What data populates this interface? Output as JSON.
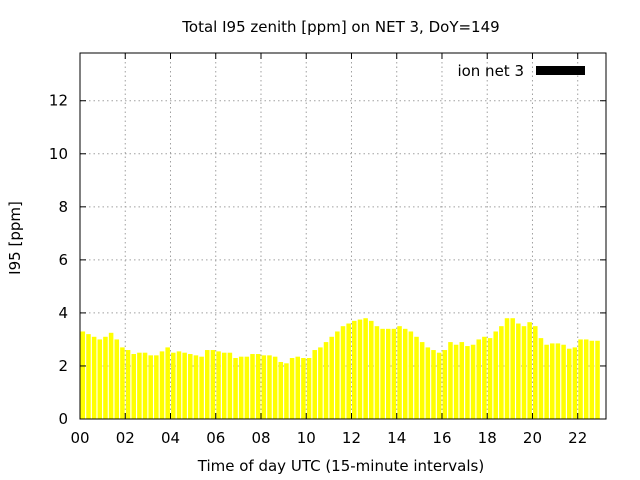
{
  "chart_data": {
    "type": "bar",
    "title": "Total I95 zenith [ppm] on NET 3, DoY=149",
    "xlabel": "Time of day UTC (15-minute intervals)",
    "ylabel": "I95 [ppm]",
    "xlim": [
      0,
      23.25
    ],
    "ylim": [
      0,
      13.8
    ],
    "x_ticks": [
      "00",
      "02",
      "04",
      "06",
      "08",
      "10",
      "12",
      "14",
      "16",
      "18",
      "20",
      "22"
    ],
    "y_ticks": [
      "0",
      "2",
      "4",
      "6",
      "8",
      "10",
      "12"
    ],
    "grid": true,
    "legend_position": "top-right",
    "bar_width_hours": 0.2,
    "series": [
      {
        "name": "ion net 3",
        "color": "#ffff00",
        "legend_swatch_color": "#000000",
        "x": [
          0.125,
          0.375,
          0.625,
          0.875,
          1.125,
          1.375,
          1.625,
          1.875,
          2.125,
          2.375,
          2.625,
          2.875,
          3.125,
          3.375,
          3.625,
          3.875,
          4.125,
          4.375,
          4.625,
          4.875,
          5.125,
          5.375,
          5.625,
          5.875,
          6.125,
          6.375,
          6.625,
          6.875,
          7.125,
          7.375,
          7.625,
          7.875,
          8.125,
          8.375,
          8.625,
          8.875,
          9.125,
          9.375,
          9.625,
          9.875,
          10.125,
          10.375,
          10.625,
          10.875,
          11.125,
          11.375,
          11.625,
          11.875,
          12.125,
          12.375,
          12.625,
          12.875,
          13.125,
          13.375,
          13.625,
          13.875,
          14.125,
          14.375,
          14.625,
          14.875,
          15.125,
          15.375,
          15.625,
          15.875,
          16.125,
          16.375,
          16.625,
          16.875,
          17.125,
          17.375,
          17.625,
          17.875,
          18.125,
          18.375,
          18.625,
          18.875,
          19.125,
          19.375,
          19.625,
          19.875,
          20.125,
          20.375,
          20.625,
          20.875,
          21.125,
          21.375,
          21.625,
          21.875,
          22.125,
          22.375,
          22.625,
          22.875
        ],
        "values": [
          3.3,
          3.2,
          3.1,
          3.0,
          3.1,
          3.25,
          3.0,
          2.7,
          2.6,
          2.45,
          2.5,
          2.5,
          2.4,
          2.4,
          2.55,
          2.7,
          2.5,
          2.55,
          2.5,
          2.45,
          2.4,
          2.35,
          2.6,
          2.6,
          2.55,
          2.5,
          2.5,
          2.3,
          2.35,
          2.35,
          2.45,
          2.45,
          2.4,
          2.4,
          2.35,
          2.15,
          2.1,
          2.3,
          2.35,
          2.3,
          2.3,
          2.6,
          2.7,
          2.9,
          3.1,
          3.3,
          3.5,
          3.6,
          3.7,
          3.75,
          3.8,
          3.7,
          3.5,
          3.4,
          3.4,
          3.4,
          3.5,
          3.4,
          3.3,
          3.1,
          2.9,
          2.7,
          2.6,
          2.5,
          2.6,
          2.9,
          2.8,
          2.9,
          2.75,
          2.8,
          3.0,
          3.1,
          3.05,
          3.3,
          3.5,
          3.8,
          3.8,
          3.6,
          3.5,
          3.65,
          3.5,
          3.05,
          2.8,
          2.85,
          2.85,
          2.8,
          2.65,
          2.7,
          3.0,
          3.0,
          2.95,
          2.95
        ]
      }
    ]
  }
}
